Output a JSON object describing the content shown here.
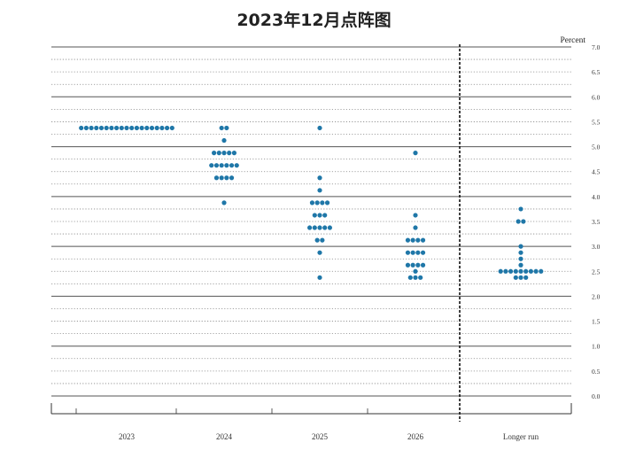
{
  "chart_data": {
    "type": "scatter",
    "title": "2023年12月点阵图",
    "ylabel": "Percent",
    "ylim": [
      0,
      7
    ],
    "ytick_step": 0.25,
    "ytick_labels": [
      "0.0",
      "0.5",
      "1.0",
      "1.5",
      "2.0",
      "2.5",
      "3.0",
      "3.5",
      "4.0",
      "4.5",
      "5.0",
      "5.5",
      "6.0",
      "6.5",
      "7.0"
    ],
    "categories": [
      "2023",
      "2024",
      "2025",
      "2026",
      "Longer run"
    ],
    "grid": true,
    "dot_color": "#1f77a8",
    "columns": [
      {
        "category": "2023",
        "groups": [
          {
            "rate": 5.375,
            "count": 19
          }
        ]
      },
      {
        "category": "2024",
        "groups": [
          {
            "rate": 5.375,
            "count": 2
          },
          {
            "rate": 5.125,
            "count": 1
          },
          {
            "rate": 4.875,
            "count": 5
          },
          {
            "rate": 4.625,
            "count": 6
          },
          {
            "rate": 4.375,
            "count": 4
          },
          {
            "rate": 3.875,
            "count": 1
          }
        ]
      },
      {
        "category": "2025",
        "groups": [
          {
            "rate": 5.375,
            "count": 1
          },
          {
            "rate": 4.375,
            "count": 1
          },
          {
            "rate": 4.125,
            "count": 1
          },
          {
            "rate": 3.875,
            "count": 4
          },
          {
            "rate": 3.625,
            "count": 3
          },
          {
            "rate": 3.375,
            "count": 5
          },
          {
            "rate": 3.125,
            "count": 2
          },
          {
            "rate": 2.875,
            "count": 1
          },
          {
            "rate": 2.375,
            "count": 1
          }
        ]
      },
      {
        "category": "2026",
        "groups": [
          {
            "rate": 4.875,
            "count": 1
          },
          {
            "rate": 3.625,
            "count": 1
          },
          {
            "rate": 3.375,
            "count": 1
          },
          {
            "rate": 3.125,
            "count": 4
          },
          {
            "rate": 2.875,
            "count": 4
          },
          {
            "rate": 2.625,
            "count": 4
          },
          {
            "rate": 2.5,
            "count": 1
          },
          {
            "rate": 2.375,
            "count": 3
          }
        ]
      },
      {
        "category": "Longer run",
        "groups": [
          {
            "rate": 3.75,
            "count": 1
          },
          {
            "rate": 3.5,
            "count": 2
          },
          {
            "rate": 3.0,
            "count": 1
          },
          {
            "rate": 2.875,
            "count": 1
          },
          {
            "rate": 2.75,
            "count": 1
          },
          {
            "rate": 2.625,
            "count": 1
          },
          {
            "rate": 2.5,
            "count": 9
          },
          {
            "rate": 2.375,
            "count": 3
          }
        ]
      }
    ]
  }
}
